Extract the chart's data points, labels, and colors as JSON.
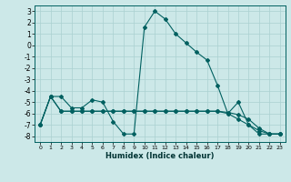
{
  "xlabel": "Humidex (Indice chaleur)",
  "bg_color": "#cce8e8",
  "grid_color": "#aad0d0",
  "line_color": "#006060",
  "xlim": [
    -0.5,
    23.5
  ],
  "ylim": [
    -8.5,
    3.5
  ],
  "xticks": [
    0,
    1,
    2,
    3,
    4,
    5,
    6,
    7,
    8,
    9,
    10,
    11,
    12,
    13,
    14,
    15,
    16,
    17,
    18,
    19,
    20,
    21,
    22,
    23
  ],
  "yticks": [
    -8,
    -7,
    -6,
    -5,
    -4,
    -3,
    -2,
    -1,
    0,
    1,
    2,
    3
  ],
  "line1_x": [
    0,
    1,
    2,
    3,
    4,
    5,
    6,
    7,
    8,
    9,
    10,
    11,
    12,
    13,
    14,
    15,
    16,
    17,
    18,
    19,
    20,
    21,
    22,
    23
  ],
  "line1_y": [
    -7.0,
    -4.5,
    -4.5,
    -5.5,
    -5.5,
    -4.8,
    -5.0,
    -6.7,
    -7.8,
    -7.8,
    1.6,
    3.0,
    2.3,
    1.0,
    0.2,
    -0.6,
    -1.3,
    -3.5,
    -6.0,
    -5.0,
    -7.0,
    -7.8,
    -7.8,
    -7.8
  ],
  "line2_x": [
    0,
    1,
    2,
    3,
    4,
    5,
    6,
    7,
    8,
    9,
    10,
    11,
    12,
    13,
    14,
    15,
    16,
    17,
    18,
    19,
    20,
    21,
    22,
    23
  ],
  "line2_y": [
    -7.0,
    -4.5,
    -5.8,
    -5.8,
    -5.8,
    -5.8,
    -5.8,
    -5.8,
    -5.8,
    -5.8,
    -5.8,
    -5.8,
    -5.8,
    -5.8,
    -5.8,
    -5.8,
    -5.8,
    -5.8,
    -5.9,
    -6.1,
    -6.5,
    -7.3,
    -7.8,
    -7.8
  ],
  "line3_x": [
    0,
    1,
    2,
    3,
    4,
    5,
    6,
    7,
    8,
    9,
    10,
    11,
    12,
    13,
    14,
    15,
    16,
    17,
    18,
    19,
    20,
    21,
    22,
    23
  ],
  "line3_y": [
    -7.0,
    -4.5,
    -5.8,
    -5.8,
    -5.8,
    -5.8,
    -5.8,
    -5.8,
    -5.8,
    -5.8,
    -5.8,
    -5.8,
    -5.8,
    -5.8,
    -5.8,
    -5.8,
    -5.8,
    -5.8,
    -6.0,
    -6.5,
    -7.0,
    -7.5,
    -7.8,
    -7.8
  ]
}
